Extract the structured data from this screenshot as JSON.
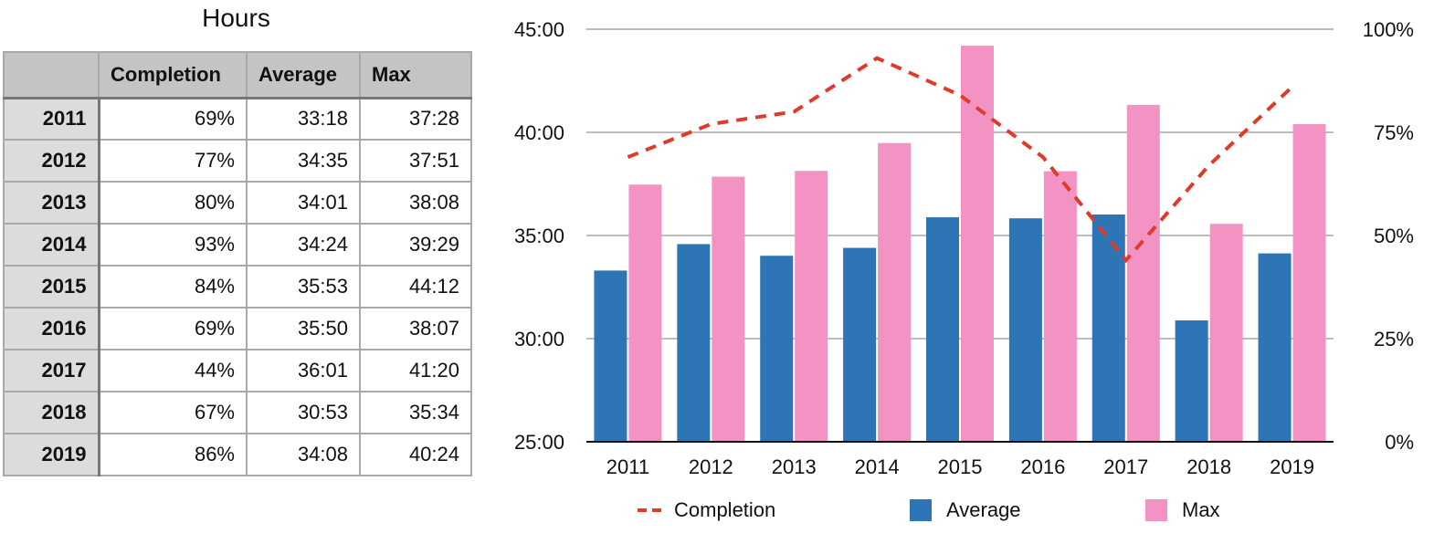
{
  "table": {
    "title": "Hours",
    "headers": [
      "",
      "Completion",
      "Average",
      "Max"
    ],
    "rows": [
      {
        "year": "2011",
        "completion": "69%",
        "average": "33:18",
        "max": "37:28"
      },
      {
        "year": "2012",
        "completion": "77%",
        "average": "34:35",
        "max": "37:51"
      },
      {
        "year": "2013",
        "completion": "80%",
        "average": "34:01",
        "max": "38:08"
      },
      {
        "year": "2014",
        "completion": "93%",
        "average": "34:24",
        "max": "39:29"
      },
      {
        "year": "2015",
        "completion": "84%",
        "average": "35:53",
        "max": "44:12"
      },
      {
        "year": "2016",
        "completion": "69%",
        "average": "35:50",
        "max": "38:07"
      },
      {
        "year": "2017",
        "completion": "44%",
        "average": "36:01",
        "max": "41:20"
      },
      {
        "year": "2018",
        "completion": "67%",
        "average": "30:53",
        "max": "35:34"
      },
      {
        "year": "2019",
        "completion": "86%",
        "average": "34:08",
        "max": "40:24"
      }
    ]
  },
  "chart_data": {
    "type": "bar",
    "categories": [
      "2011",
      "2012",
      "2013",
      "2014",
      "2015",
      "2016",
      "2017",
      "2018",
      "2019"
    ],
    "series": [
      {
        "name": "Average",
        "kind": "bar",
        "axis": "left",
        "color": "#2e75b6",
        "values": [
          33.3,
          34.583,
          34.017,
          34.4,
          35.883,
          35.833,
          36.017,
          30.883,
          34.133
        ]
      },
      {
        "name": "Max",
        "kind": "bar",
        "axis": "left",
        "color": "#f293c4",
        "values": [
          37.467,
          37.85,
          38.133,
          39.483,
          44.2,
          38.117,
          41.333,
          35.567,
          40.4
        ]
      },
      {
        "name": "Completion",
        "kind": "line",
        "style": "dashed",
        "axis": "right",
        "color": "#e03a2a",
        "values": [
          69,
          77,
          80,
          93,
          84,
          69,
          44,
          67,
          86
        ]
      }
    ],
    "y_left": {
      "min": 25,
      "max": 45,
      "ticks": [
        25,
        30,
        35,
        40,
        45
      ],
      "tick_labels": [
        "25:00",
        "30:00",
        "35:00",
        "40:00",
        "45:00"
      ]
    },
    "y_right": {
      "min": 0,
      "max": 100,
      "ticks": [
        0,
        25,
        50,
        75,
        100
      ],
      "tick_labels": [
        "0%",
        "25%",
        "50%",
        "75%",
        "100%"
      ]
    },
    "legend": [
      {
        "label": "Completion",
        "marker": "dash",
        "color": "#e03a2a"
      },
      {
        "label": "Average",
        "marker": "square",
        "color": "#2e75b6"
      },
      {
        "label": "Max",
        "marker": "square",
        "color": "#f293c4"
      }
    ],
    "legend_position": "bottom",
    "grid": true
  }
}
